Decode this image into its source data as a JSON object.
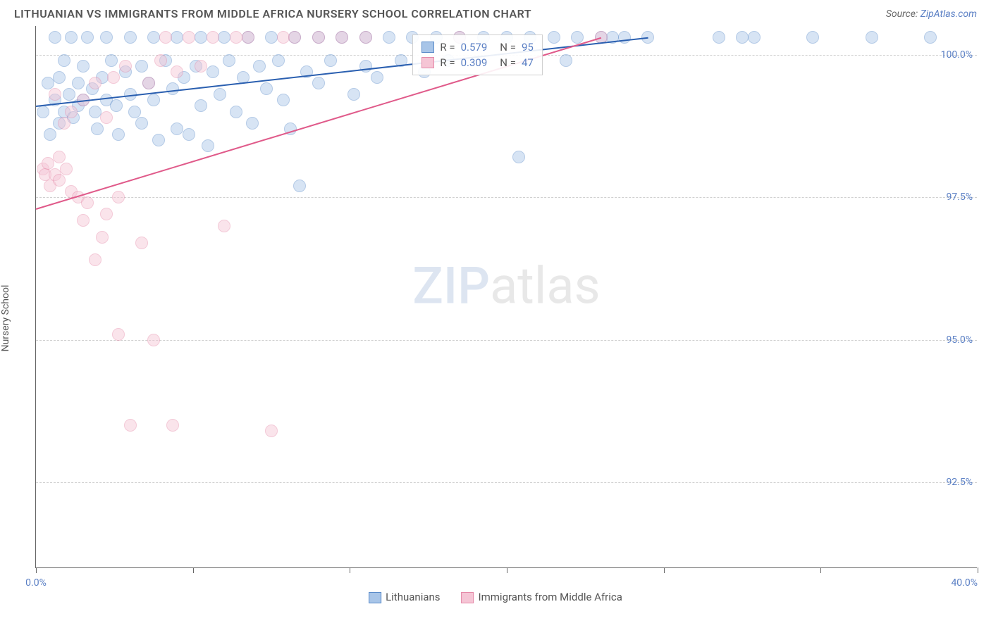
{
  "header": {
    "title": "LITHUANIAN VS IMMIGRANTS FROM MIDDLE AFRICA NURSERY SCHOOL CORRELATION CHART",
    "source_prefix": "Source: ",
    "source_link": "ZipAtlas.com"
  },
  "chart": {
    "type": "scatter",
    "ylabel": "Nursery School",
    "xlim": [
      0,
      40
    ],
    "ylim": [
      91,
      100.5
    ],
    "yticks": [
      92.5,
      95.0,
      97.5,
      100.0
    ],
    "ytick_labels": [
      "92.5%",
      "95.0%",
      "97.5%",
      "100.0%"
    ],
    "xticks": [
      0,
      6.67,
      13.33,
      20,
      26.67,
      33.33,
      40
    ],
    "xtick_labels_visible": {
      "0": "0.0%",
      "40": "40.0%"
    },
    "background_color": "#ffffff",
    "grid_color": "#d0d0d0",
    "axis_color": "#666666",
    "marker_radius": 9,
    "marker_opacity": 0.45,
    "series": [
      {
        "name": "Lithuanians",
        "color_fill": "#a8c5e8",
        "color_stroke": "#5a8bc9",
        "trend_color": "#2a5fb0",
        "R": "0.579",
        "N": "95",
        "trend": {
          "x1": 0,
          "y1": 99.1,
          "x2": 26,
          "y2": 100.3
        },
        "points": [
          [
            0.3,
            99.0
          ],
          [
            0.5,
            99.5
          ],
          [
            0.6,
            98.6
          ],
          [
            0.8,
            99.2
          ],
          [
            0.8,
            100.3
          ],
          [
            1.0,
            99.6
          ],
          [
            1.0,
            98.8
          ],
          [
            1.2,
            99.0
          ],
          [
            1.2,
            99.9
          ],
          [
            1.4,
            99.3
          ],
          [
            1.5,
            100.3
          ],
          [
            1.6,
            98.9
          ],
          [
            1.8,
            99.5
          ],
          [
            1.8,
            99.1
          ],
          [
            2.0,
            99.8
          ],
          [
            2.0,
            99.2
          ],
          [
            2.2,
            100.3
          ],
          [
            2.4,
            99.4
          ],
          [
            2.5,
            99.0
          ],
          [
            2.6,
            98.7
          ],
          [
            2.8,
            99.6
          ],
          [
            3.0,
            99.2
          ],
          [
            3.0,
            100.3
          ],
          [
            3.2,
            99.9
          ],
          [
            3.4,
            99.1
          ],
          [
            3.5,
            98.6
          ],
          [
            3.8,
            99.7
          ],
          [
            4.0,
            100.3
          ],
          [
            4.0,
            99.3
          ],
          [
            4.2,
            99.0
          ],
          [
            4.5,
            99.8
          ],
          [
            4.5,
            98.8
          ],
          [
            4.8,
            99.5
          ],
          [
            5.0,
            100.3
          ],
          [
            5.0,
            99.2
          ],
          [
            5.2,
            98.5
          ],
          [
            5.5,
            99.9
          ],
          [
            5.8,
            99.4
          ],
          [
            6.0,
            100.3
          ],
          [
            6.0,
            98.7
          ],
          [
            6.3,
            99.6
          ],
          [
            6.5,
            98.6
          ],
          [
            6.8,
            99.8
          ],
          [
            7.0,
            100.3
          ],
          [
            7.0,
            99.1
          ],
          [
            7.3,
            98.4
          ],
          [
            7.5,
            99.7
          ],
          [
            7.8,
            99.3
          ],
          [
            8.0,
            100.3
          ],
          [
            8.2,
            99.9
          ],
          [
            8.5,
            99.0
          ],
          [
            8.8,
            99.6
          ],
          [
            9.0,
            100.3
          ],
          [
            9.2,
            98.8
          ],
          [
            9.5,
            99.8
          ],
          [
            9.8,
            99.4
          ],
          [
            10.0,
            100.3
          ],
          [
            10.3,
            99.9
          ],
          [
            10.5,
            99.2
          ],
          [
            10.8,
            98.7
          ],
          [
            11.0,
            100.3
          ],
          [
            11.2,
            97.7
          ],
          [
            11.5,
            99.7
          ],
          [
            12.0,
            100.3
          ],
          [
            12.0,
            99.5
          ],
          [
            12.5,
            99.9
          ],
          [
            13.0,
            100.3
          ],
          [
            13.5,
            99.3
          ],
          [
            14.0,
            100.3
          ],
          [
            14.0,
            99.8
          ],
          [
            14.5,
            99.6
          ],
          [
            15.0,
            100.3
          ],
          [
            15.5,
            99.9
          ],
          [
            16.0,
            100.3
          ],
          [
            16.5,
            99.7
          ],
          [
            17.0,
            100.3
          ],
          [
            17.5,
            99.9
          ],
          [
            18.0,
            100.3
          ],
          [
            19.0,
            100.3
          ],
          [
            20.0,
            100.3
          ],
          [
            20.5,
            98.2
          ],
          [
            21.0,
            100.3
          ],
          [
            22.0,
            100.3
          ],
          [
            22.5,
            99.9
          ],
          [
            23.0,
            100.3
          ],
          [
            24.0,
            100.3
          ],
          [
            24.5,
            100.3
          ],
          [
            25.0,
            100.3
          ],
          [
            26.0,
            100.3
          ],
          [
            29.0,
            100.3
          ],
          [
            30.0,
            100.3
          ],
          [
            30.5,
            100.3
          ],
          [
            33.0,
            100.3
          ],
          [
            35.5,
            100.3
          ],
          [
            38.0,
            100.3
          ]
        ]
      },
      {
        "name": "Immigrants from Middle Africa",
        "color_fill": "#f5c5d5",
        "color_stroke": "#e589a8",
        "trend_color": "#e05a8a",
        "R": "0.309",
        "N": "47",
        "trend": {
          "x1": 0,
          "y1": 97.3,
          "x2": 24,
          "y2": 100.3
        },
        "points": [
          [
            0.3,
            98.0
          ],
          [
            0.4,
            97.9
          ],
          [
            0.5,
            98.1
          ],
          [
            0.6,
            97.7
          ],
          [
            0.8,
            97.9
          ],
          [
            0.8,
            99.3
          ],
          [
            1.0,
            98.2
          ],
          [
            1.0,
            97.8
          ],
          [
            1.2,
            98.8
          ],
          [
            1.3,
            98.0
          ],
          [
            1.5,
            97.6
          ],
          [
            1.5,
            99.0
          ],
          [
            1.8,
            97.5
          ],
          [
            2.0,
            99.2
          ],
          [
            2.0,
            97.1
          ],
          [
            2.2,
            97.4
          ],
          [
            2.5,
            99.5
          ],
          [
            2.5,
            96.4
          ],
          [
            2.8,
            96.8
          ],
          [
            3.0,
            98.9
          ],
          [
            3.0,
            97.2
          ],
          [
            3.3,
            99.6
          ],
          [
            3.5,
            95.1
          ],
          [
            3.5,
            97.5
          ],
          [
            3.8,
            99.8
          ],
          [
            4.0,
            93.5
          ],
          [
            4.5,
            96.7
          ],
          [
            4.8,
            99.5
          ],
          [
            5.0,
            95.0
          ],
          [
            5.3,
            99.9
          ],
          [
            5.5,
            100.3
          ],
          [
            5.8,
            93.5
          ],
          [
            6.0,
            99.7
          ],
          [
            6.5,
            100.3
          ],
          [
            7.0,
            99.8
          ],
          [
            7.5,
            100.3
          ],
          [
            8.0,
            97.0
          ],
          [
            8.5,
            100.3
          ],
          [
            9.0,
            100.3
          ],
          [
            10.0,
            93.4
          ],
          [
            10.5,
            100.3
          ],
          [
            11.0,
            100.3
          ],
          [
            12.0,
            100.3
          ],
          [
            13.0,
            100.3
          ],
          [
            14.0,
            100.3
          ],
          [
            18.0,
            100.3
          ],
          [
            24.0,
            100.3
          ]
        ]
      }
    ],
    "stats_legend": {
      "rows": [
        {
          "swatch_fill": "#a8c5e8",
          "swatch_stroke": "#5a8bc9",
          "R_label": "R =",
          "R": "0.579",
          "N_label": "N =",
          "N": "95"
        },
        {
          "swatch_fill": "#f5c5d5",
          "swatch_stroke": "#e589a8",
          "R_label": "R =",
          "R": "0.309",
          "N_label": "N =",
          "N": "47"
        }
      ]
    },
    "bottom_legend": [
      {
        "swatch_fill": "#a8c5e8",
        "swatch_stroke": "#5a8bc9",
        "label": "Lithuanians"
      },
      {
        "swatch_fill": "#f5c5d5",
        "swatch_stroke": "#e589a8",
        "label": "Immigrants from Middle Africa"
      }
    ],
    "watermark": {
      "zip": "ZIP",
      "atlas": "atlas"
    }
  }
}
